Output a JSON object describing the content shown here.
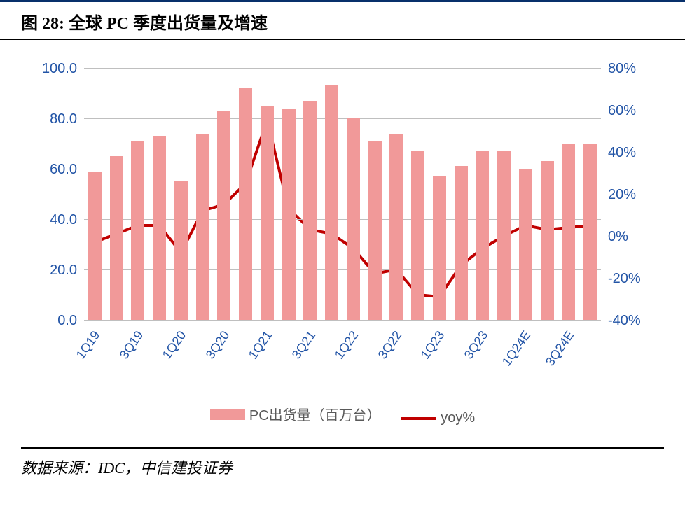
{
  "title": "图 28: 全球 PC 季度出货量及增速",
  "source_label": "数据来源：IDC，中信建投证券",
  "chart": {
    "type": "bar+line",
    "background_color": "#ffffff",
    "title_fontsize": 24,
    "categories": [
      "1Q19",
      "2Q19",
      "3Q19",
      "4Q19",
      "1Q20",
      "2Q20",
      "3Q20",
      "4Q20",
      "1Q21",
      "2Q21",
      "3Q21",
      "4Q21",
      "1Q22",
      "2Q22",
      "3Q22",
      "4Q22",
      "1Q23",
      "2Q23",
      "3Q23",
      "4Q23",
      "1Q24E",
      "2Q24E",
      "3Q24E",
      "4Q24E"
    ],
    "x_labels_shown": [
      "1Q19",
      "3Q19",
      "1Q20",
      "3Q20",
      "1Q21",
      "3Q21",
      "1Q22",
      "3Q22",
      "1Q23",
      "3Q23",
      "1Q24E",
      "3Q24E"
    ],
    "bars": {
      "label": "PC出货量（百万台）",
      "values": [
        59,
        65,
        71,
        73,
        55,
        74,
        83,
        92,
        85,
        84,
        87,
        93,
        80,
        71,
        74,
        67,
        57,
        61,
        67,
        67,
        60,
        63,
        70,
        70
      ],
      "color": "#f19999",
      "width_ratio": 0.62
    },
    "line": {
      "label": "yoy%",
      "values": [
        -3,
        1,
        5,
        5,
        -8,
        12,
        15,
        25,
        55,
        13,
        3,
        1,
        -6,
        -18,
        -16,
        -28,
        -29,
        -14,
        -6,
        0,
        5,
        3,
        4,
        5
      ],
      "color": "#c00000",
      "width": 4
    },
    "y_left": {
      "min": 0,
      "max": 100,
      "step": 20,
      "ticks": [
        "0.0",
        "20.0",
        "40.0",
        "60.0",
        "80.0",
        "100.0"
      ],
      "color": "#2254a6",
      "fontsize": 20
    },
    "y_right": {
      "min": -40,
      "max": 80,
      "step": 20,
      "ticks": [
        "-40%",
        "-20%",
        "0%",
        "20%",
        "40%",
        "60%",
        "80%"
      ],
      "color": "#2254a6",
      "fontsize": 20
    },
    "x_axis": {
      "color": "#2254a6",
      "fontsize": 18,
      "rotation": -55
    },
    "grid": {
      "color": "#bfbfbf",
      "axis_color": "#bfbfbf"
    },
    "legend": {
      "fontsize": 20,
      "text_color": "#595959"
    }
  }
}
